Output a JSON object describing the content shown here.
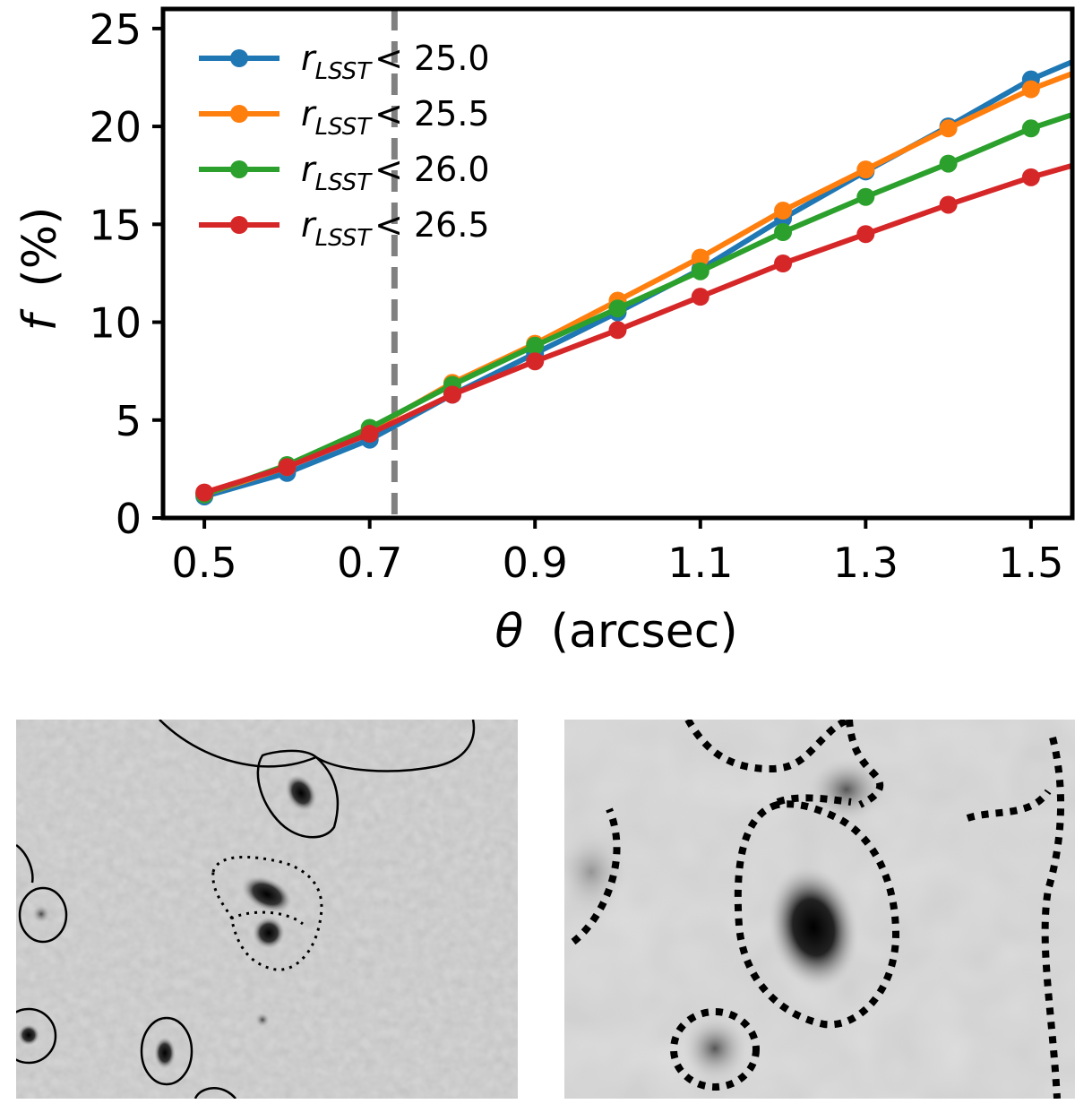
{
  "chart_data": {
    "type": "line",
    "xlabel_symbol": "θ",
    "xlabel_unit": "(arcsec)",
    "ylabel_symbol": "f",
    "ylabel_unit": "(%)",
    "xlim": [
      0.45,
      1.55
    ],
    "ylim": [
      0,
      26
    ],
    "xticks": [
      "0.5",
      "0.7",
      "0.9",
      "1.1",
      "1.3",
      "1.5"
    ],
    "yticks": [
      "0",
      "5",
      "10",
      "15",
      "20",
      "25"
    ],
    "vline": {
      "x": 0.73,
      "style": "dashed",
      "color": "#808080"
    },
    "legend_position": "top-left",
    "x": [
      0.5,
      0.6,
      0.7,
      0.8,
      0.9,
      1.0,
      1.1,
      1.2,
      1.3,
      1.4,
      1.5,
      1.55
    ],
    "series": [
      {
        "name_main": "r",
        "name_sub": "LSST",
        "name_rest": "< 25.0",
        "color": "#1f77b4",
        "values": [
          1.1,
          2.3,
          4.0,
          6.3,
          8.4,
          10.5,
          12.7,
          15.3,
          17.7,
          20.0,
          22.4,
          23.3
        ]
      },
      {
        "name_main": "r",
        "name_sub": "LSST",
        "name_rest": "< 25.5",
        "color": "#ff7f0e",
        "values": [
          1.2,
          2.6,
          4.5,
          6.9,
          8.9,
          11.1,
          13.3,
          15.7,
          17.8,
          19.9,
          21.9,
          22.7
        ]
      },
      {
        "name_main": "r",
        "name_sub": "LSST",
        "name_rest": "< 26.0",
        "color": "#2ca02c",
        "values": [
          1.2,
          2.7,
          4.6,
          6.8,
          8.8,
          10.7,
          12.6,
          14.6,
          16.4,
          18.1,
          19.9,
          20.6
        ]
      },
      {
        "name_main": "r",
        "name_sub": "LSST",
        "name_rest": "< 26.5",
        "color": "#d62728",
        "values": [
          1.3,
          2.6,
          4.3,
          6.3,
          8.0,
          9.6,
          11.3,
          13.0,
          14.5,
          16.0,
          17.4,
          18.0
        ]
      }
    ]
  },
  "panels": [
    {
      "name": "left-cutout",
      "description_icon": "galaxy-cutout-icon"
    },
    {
      "name": "right-cutout",
      "description_icon": "galaxy-cutout-icon"
    }
  ]
}
